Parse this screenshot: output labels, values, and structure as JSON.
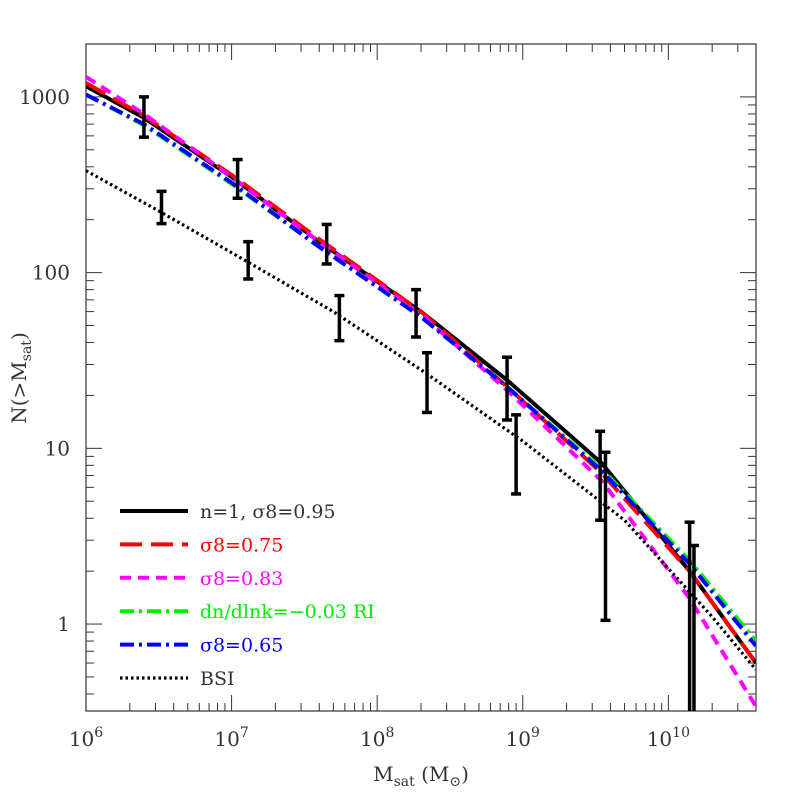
{
  "chart_data": {
    "type": "line",
    "xlabel": "M_sat (M_⊙)",
    "ylabel": "N(>M_sat)",
    "x_scale": "log",
    "y_scale": "log",
    "xlim": [
      1000000,
      40000000000
    ],
    "ylim": [
      0.32,
      2000
    ],
    "x_ticks": [
      {
        "value": 1000000,
        "base": "10",
        "exp": "6"
      },
      {
        "value": 10000000,
        "base": "10",
        "exp": "7"
      },
      {
        "value": 100000000,
        "base": "10",
        "exp": "8"
      },
      {
        "value": 1000000000,
        "base": "10",
        "exp": "9"
      },
      {
        "value": 10000000000,
        "base": "10",
        "exp": "10"
      }
    ],
    "y_ticks": [
      {
        "value": 1,
        "label": "1"
      },
      {
        "value": 10,
        "label": "10"
      },
      {
        "value": 100,
        "label": "100"
      },
      {
        "value": 1000,
        "label": "1000"
      }
    ],
    "legend_position": "bottom-left",
    "series": [
      {
        "name": "n=1, σ8=0.95",
        "color": "#000000",
        "style": "solid",
        "x": [
          1000000,
          2500000,
          10000000,
          40000000,
          200000000,
          800000000,
          3500000000,
          14000000000,
          40000000000
        ],
        "y": [
          1150,
          760,
          350,
          150,
          60,
          24,
          8.2,
          2.0,
          0.6
        ]
      },
      {
        "name": "σ8=0.75",
        "color": "#ff0000",
        "style": "longdash",
        "x": [
          1000000,
          2500000,
          10000000,
          40000000,
          200000000,
          800000000,
          3500000000,
          14000000000,
          40000000000
        ],
        "y": [
          1200,
          780,
          360,
          155,
          60,
          22,
          7.2,
          2.0,
          0.6
        ]
      },
      {
        "name": "σ8=0.83",
        "color": "#ff00ff",
        "style": "shortdash",
        "x": [
          1000000,
          2500000,
          10000000,
          40000000,
          200000000,
          800000000,
          3500000000,
          14000000000,
          40000000000
        ],
        "y": [
          1300,
          800,
          350,
          150,
          58,
          21,
          6.5,
          1.4,
          0.34
        ]
      },
      {
        "name": "dn/dlnk=−0.03 RI",
        "color": "#00ee00",
        "style": "dashdot",
        "x": [
          1000000,
          2500000,
          10000000,
          40000000,
          200000000,
          800000000,
          3500000000,
          14000000000,
          40000000000
        ],
        "y": [
          1030,
          690,
          320,
          140,
          56,
          22,
          7.6,
          2.3,
          0.8
        ]
      },
      {
        "name": "σ8=0.65",
        "color": "#0000ff",
        "style": "dashdot",
        "x": [
          1000000,
          2500000,
          10000000,
          40000000,
          200000000,
          800000000,
          3500000000,
          14000000000,
          40000000000
        ],
        "y": [
          1030,
          700,
          325,
          140,
          56,
          22,
          7.4,
          2.2,
          0.75
        ]
      },
      {
        "name": "BSI",
        "color": "#000000",
        "style": "dotted",
        "x": [
          1000000,
          3000000,
          10000000,
          50000000,
          200000000,
          1000000000,
          5000000000,
          20000000000,
          40000000000
        ],
        "y": [
          380,
          230,
          130,
          60,
          28,
          11,
          3.9,
          1.1,
          0.55
        ]
      }
    ],
    "error_bars": [
      {
        "x": 2500000,
        "y": 750,
        "low": 590,
        "high": 1000
      },
      {
        "x": 11000000,
        "y": 340,
        "low": 265,
        "high": 440
      },
      {
        "x": 45000000,
        "y": 145,
        "low": 112,
        "high": 188
      },
      {
        "x": 185000000,
        "y": 60,
        "low": 43,
        "high": 80
      },
      {
        "x": 780000000,
        "y": 22,
        "low": 14.5,
        "high": 33
      },
      {
        "x": 3400000000,
        "y": 7.5,
        "low": 3.9,
        "high": 12.5
      },
      {
        "x": 14000000000,
        "y": 2.0,
        "low": 0.32,
        "high": 3.8
      },
      {
        "x": 3300000,
        "y": 240,
        "low": 190,
        "high": 290
      },
      {
        "x": 13000000,
        "y": 120,
        "low": 92,
        "high": 150
      },
      {
        "x": 55000000,
        "y": 57,
        "low": 41,
        "high": 74
      },
      {
        "x": 220000000,
        "y": 25,
        "low": 16,
        "high": 35
      },
      {
        "x": 900000000,
        "y": 10,
        "low": 5.5,
        "high": 15.5
      },
      {
        "x": 3700000000,
        "y": 5.5,
        "low": 1.05,
        "high": 9.5
      },
      {
        "x": 15000000000,
        "y": 1.5,
        "low": 0.32,
        "high": 2.8
      }
    ]
  }
}
